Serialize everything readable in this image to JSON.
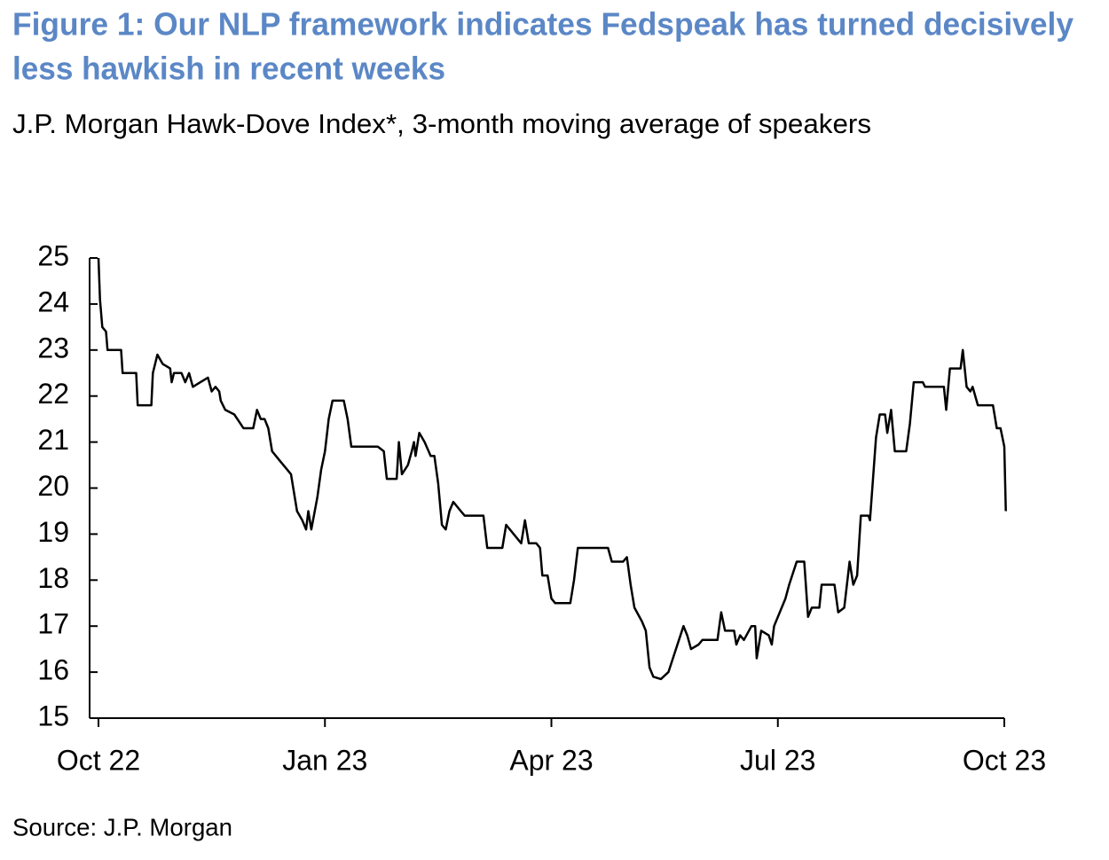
{
  "chart_data": {
    "type": "line",
    "title": [
      "Figure 1: Our NLP framework indicates Fedspeak has turned decisively",
      "less hawkish in recent weeks"
    ],
    "subtitle": "J.P. Morgan Hawk-Dove Index*, 3-month moving average of speakers",
    "source": "Source: J.P. Morgan",
    "title_color": "#5b87c6",
    "xlim": [
      0,
      12
    ],
    "xticks": [
      {
        "value": 0,
        "label": "Oct 22"
      },
      {
        "value": 3,
        "label": "Jan 23"
      },
      {
        "value": 6,
        "label": "Apr 23"
      },
      {
        "value": 9,
        "label": "Jul 23"
      },
      {
        "value": 12,
        "label": "Oct 23"
      }
    ],
    "ylim": [
      15,
      25
    ],
    "yticks": [
      15,
      16,
      17,
      18,
      19,
      20,
      21,
      22,
      23,
      24,
      25
    ],
    "grid": false,
    "x": [
      0,
      0.02,
      0.05,
      0.1,
      0.12,
      0.3,
      0.32,
      0.5,
      0.52,
      0.7,
      0.72,
      0.78,
      0.85,
      0.95,
      0.97,
      1.0,
      1.1,
      1.15,
      1.2,
      1.25,
      1.35,
      1.45,
      1.5,
      1.55,
      1.6,
      1.62,
      1.68,
      1.8,
      1.88,
      1.92,
      2.05,
      2.1,
      2.15,
      2.2,
      2.25,
      2.3,
      2.4,
      2.5,
      2.55,
      2.63,
      2.7,
      2.75,
      2.78,
      2.82,
      2.9,
      2.95,
      3.0,
      3.05,
      3.1,
      3.25,
      3.3,
      3.35,
      3.7,
      3.78,
      3.82,
      3.95,
      3.98,
      4.02,
      4.1,
      4.15,
      4.18,
      4.2,
      4.25,
      4.32,
      4.4,
      4.45,
      4.5,
      4.55,
      4.6,
      4.65,
      4.7,
      4.8,
      4.85,
      5.1,
      5.15,
      5.35,
      5.4,
      5.45,
      5.55,
      5.6,
      5.65,
      5.7,
      5.8,
      5.85,
      5.88,
      5.95,
      6.0,
      6.05,
      6.25,
      6.3,
      6.35,
      6.75,
      6.8,
      6.95,
      7.0,
      7.05,
      7.1,
      7.2,
      7.25,
      7.3,
      7.35,
      7.45,
      7.55,
      7.65,
      7.75,
      7.8,
      7.85,
      7.95,
      8.0,
      8.2,
      8.25,
      8.3,
      8.42,
      8.45,
      8.5,
      8.55,
      8.65,
      8.7,
      8.72,
      8.78,
      8.88,
      8.92,
      8.95,
      9.1,
      9.15,
      9.25,
      9.35,
      9.4,
      9.45,
      9.55,
      9.58,
      9.75,
      9.8,
      9.88,
      9.95,
      10.0,
      10.05,
      10.1,
      10.2,
      10.22,
      10.3,
      10.35,
      10.42,
      10.45,
      10.5,
      10.55,
      10.7,
      10.75,
      10.8,
      10.92,
      10.95,
      11.2,
      11.23,
      11.28,
      11.42,
      11.45,
      11.5,
      11.55,
      11.58,
      11.65,
      11.85,
      11.9,
      11.95,
      12.0,
      12.02
    ],
    "series": [
      {
        "color": "#000000",
        "values": [
          25,
          24.1,
          23.5,
          23.4,
          23.0,
          23.0,
          22.5,
          22.5,
          21.8,
          21.8,
          22.5,
          22.9,
          22.7,
          22.6,
          22.3,
          22.5,
          22.5,
          22.3,
          22.5,
          22.2,
          22.3,
          22.4,
          22.1,
          22.2,
          22.1,
          21.9,
          21.7,
          21.6,
          21.4,
          21.3,
          21.3,
          21.7,
          21.5,
          21.5,
          21.3,
          20.8,
          20.6,
          20.4,
          20.3,
          19.5,
          19.3,
          19.1,
          19.5,
          19.1,
          19.8,
          20.4,
          20.8,
          21.5,
          21.9,
          21.9,
          21.5,
          20.9,
          20.9,
          20.8,
          20.2,
          20.2,
          21.0,
          20.3,
          20.5,
          20.8,
          21.0,
          20.7,
          21.2,
          21.0,
          20.7,
          20.7,
          20.1,
          19.2,
          19.1,
          19.5,
          19.7,
          19.5,
          19.4,
          19.4,
          18.7,
          18.7,
          19.2,
          19.1,
          18.9,
          18.8,
          19.3,
          18.8,
          18.8,
          18.7,
          18.1,
          18.1,
          17.6,
          17.5,
          17.5,
          18.0,
          18.7,
          18.7,
          18.4,
          18.4,
          18.5,
          17.9,
          17.4,
          17.1,
          16.9,
          16.1,
          15.9,
          15.85,
          16.0,
          16.5,
          17.0,
          16.8,
          16.5,
          16.6,
          16.7,
          16.7,
          17.3,
          16.9,
          16.9,
          16.6,
          16.8,
          16.7,
          17.0,
          17.0,
          16.3,
          16.9,
          16.8,
          16.6,
          17.0,
          17.6,
          17.9,
          18.4,
          18.4,
          17.2,
          17.4,
          17.4,
          17.9,
          17.9,
          17.3,
          17.4,
          18.4,
          17.9,
          18.1,
          19.4,
          19.4,
          19.3,
          21.1,
          21.6,
          21.6,
          21.2,
          21.7,
          20.8,
          20.8,
          21.4,
          22.3,
          22.3,
          22.2,
          22.2,
          21.7,
          22.6,
          22.6,
          23.0,
          22.2,
          22.1,
          22.2,
          21.8,
          21.8,
          21.3,
          21.3,
          20.9,
          19.5
        ]
      }
    ]
  }
}
